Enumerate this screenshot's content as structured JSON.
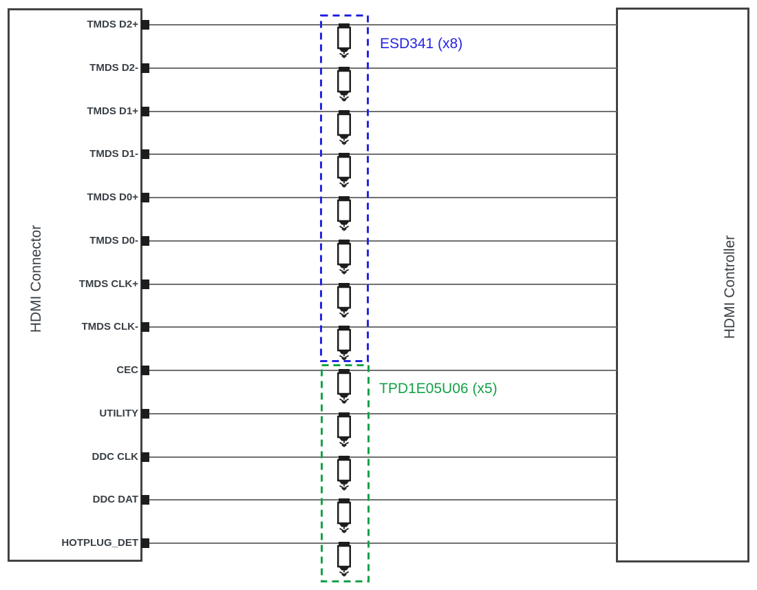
{
  "diagram": {
    "left_block": {
      "title": "HDMI Connector"
    },
    "right_block": {
      "title": "HDMI Controller"
    },
    "signals": [
      "TMDS D2+",
      "TMDS D2-",
      "TMDS D1+",
      "TMDS D1-",
      "TMDS D0+",
      "TMDS D0-",
      "TMDS CLK+",
      "TMDS CLK-",
      "CEC",
      "UTILITY",
      "DDC CLK",
      "DDC DAT",
      "HOTPLUG_DET"
    ],
    "protection_groups": [
      {
        "device": "ESD341",
        "count": 8,
        "label": "ESD341 (x8)",
        "color": "#2424e2"
      },
      {
        "device": "TPD1E05U06",
        "count": 5,
        "label": "TPD1E05U06 (x5)",
        "color": "#14a148"
      }
    ],
    "colors": {
      "wire": "#6f6f6f",
      "block_border": "#424242",
      "component_black": "#1d1d1d",
      "text": "#3a4046",
      "background": "#ffffff"
    }
  }
}
